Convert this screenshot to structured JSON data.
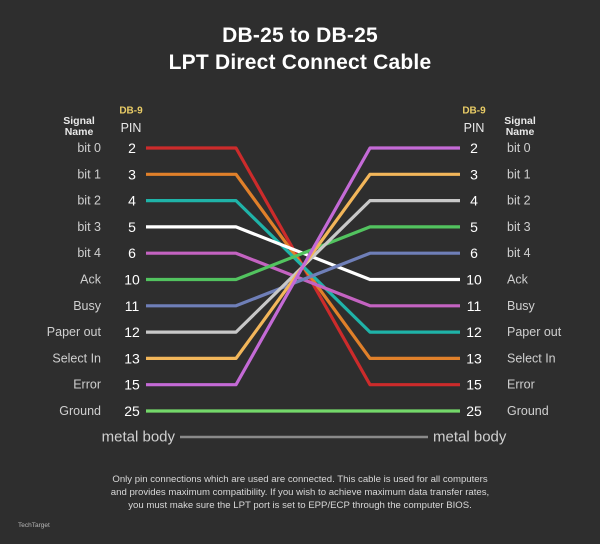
{
  "title": {
    "line1": "DB-25 to DB-25",
    "line2": "LPT Direct Connect Cable"
  },
  "headers": {
    "signal_name_line1": "Signal",
    "signal_name_line2": "Name",
    "db9": "DB-9",
    "pin": "PIN"
  },
  "colors": {
    "background": "#2e2e2e",
    "header_yellow": "#e9cc66",
    "metal_body_line": "#8a8a8a"
  },
  "left_pins": [
    {
      "signal": "bit 0",
      "pin": "2",
      "color": "#cc2b2b"
    },
    {
      "signal": "bit 1",
      "pin": "3",
      "color": "#e0802a"
    },
    {
      "signal": "bit 2",
      "pin": "4",
      "color": "#1fb3a8"
    },
    {
      "signal": "bit 3",
      "pin": "5",
      "color": "#ffffff"
    },
    {
      "signal": "bit 4",
      "pin": "6",
      "color": "#c463c1"
    },
    {
      "signal": "Ack",
      "pin": "10",
      "color": "#52c35f"
    },
    {
      "signal": "Busy",
      "pin": "11",
      "color": "#6f7fb8"
    },
    {
      "signal": "Paper out",
      "pin": "12",
      "color": "#c8c8c8"
    },
    {
      "signal": "Select In",
      "pin": "13",
      "color": "#f2b65a"
    },
    {
      "signal": "Error",
      "pin": "15",
      "color": "#c46ad6"
    },
    {
      "signal": "Ground",
      "pin": "25",
      "color": "#74d86a"
    }
  ],
  "right_pins": [
    {
      "signal": "bit 0",
      "pin": "2"
    },
    {
      "signal": "bit 1",
      "pin": "3"
    },
    {
      "signal": "bit 2",
      "pin": "4"
    },
    {
      "signal": "bit 3",
      "pin": "5"
    },
    {
      "signal": "bit 4",
      "pin": "6"
    },
    {
      "signal": "Ack",
      "pin": "10"
    },
    {
      "signal": "Busy",
      "pin": "11"
    },
    {
      "signal": "Paper out",
      "pin": "12"
    },
    {
      "signal": "Select In",
      "pin": "13"
    },
    {
      "signal": "Error",
      "pin": "15"
    },
    {
      "signal": "Ground",
      "pin": "25"
    }
  ],
  "connections": [
    {
      "from_pin": "2",
      "to_pin": "15"
    },
    {
      "from_pin": "3",
      "to_pin": "13"
    },
    {
      "from_pin": "4",
      "to_pin": "12"
    },
    {
      "from_pin": "5",
      "to_pin": "10"
    },
    {
      "from_pin": "6",
      "to_pin": "11"
    },
    {
      "from_pin": "10",
      "to_pin": "5"
    },
    {
      "from_pin": "11",
      "to_pin": "6"
    },
    {
      "from_pin": "12",
      "to_pin": "4"
    },
    {
      "from_pin": "13",
      "to_pin": "3"
    },
    {
      "from_pin": "15",
      "to_pin": "2"
    },
    {
      "from_pin": "25",
      "to_pin": "25"
    }
  ],
  "metal_body": "metal body",
  "footer": {
    "line1": "Only pin connections which are used are connected. This cable is used for all computers",
    "line2": "and provides maximum compatibility. If you wish to achieve maximum data transfer rates,",
    "line3": "you must make sure the LPT port is set to EPP/ECP through the computer BIOS."
  },
  "logo": "TechTarget"
}
